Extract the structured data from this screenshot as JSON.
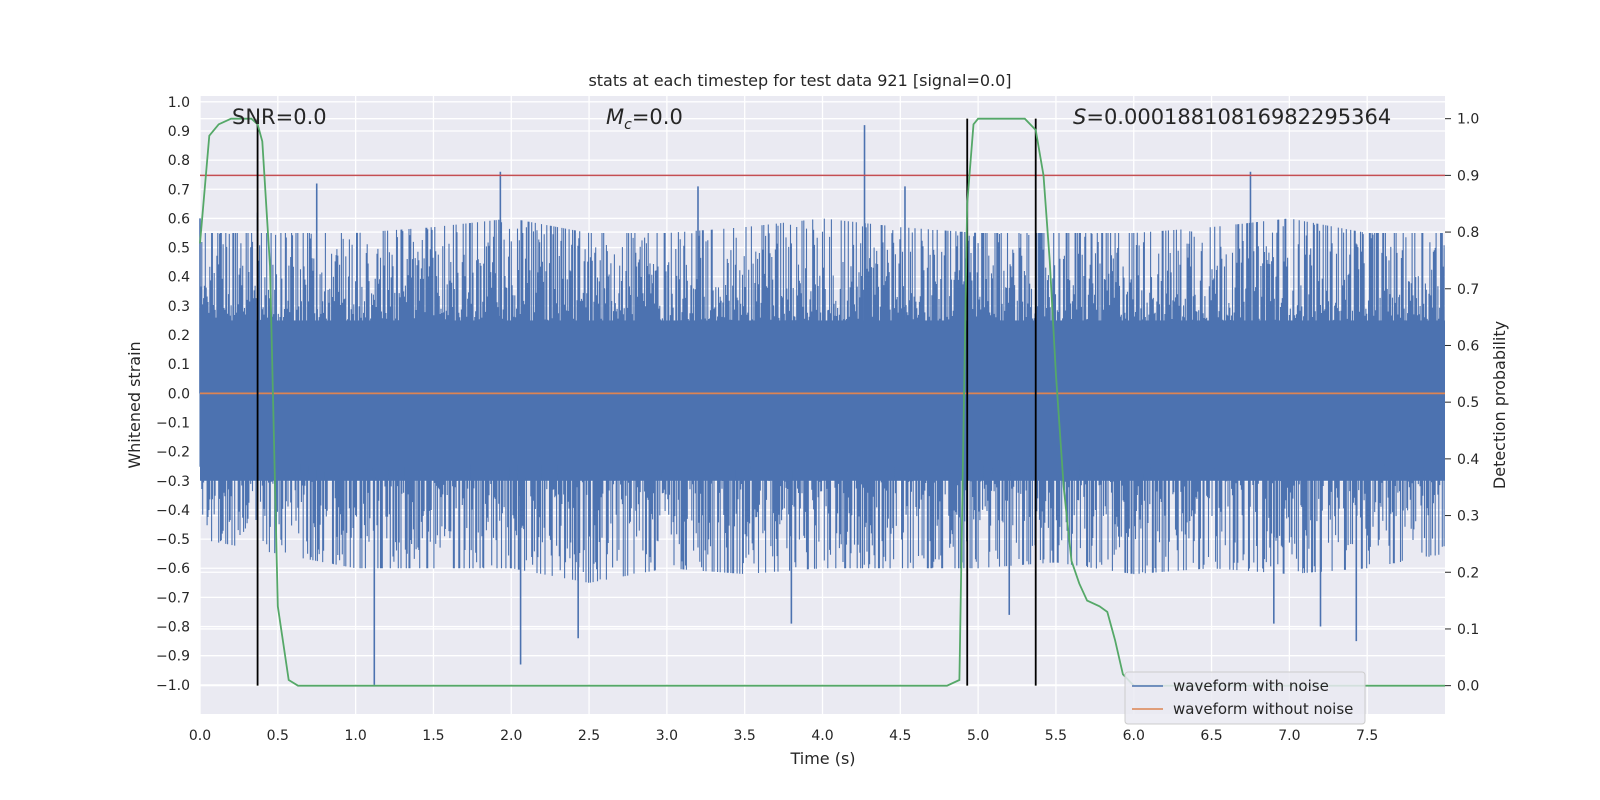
{
  "chart_data": {
    "type": "line",
    "title": "stats at each timestep for test data 921 [signal=0.0]",
    "xlabel": "Time (s)",
    "ylabel_left": "Whitened strain",
    "ylabel_right": "Detection probability",
    "xlim": [
      0.0,
      8.0
    ],
    "ylim_left": [
      -1.1,
      1.02
    ],
    "ylim_right": [
      -0.05,
      1.04
    ],
    "x_ticks": [
      "0.0",
      "0.5",
      "1.0",
      "1.5",
      "2.0",
      "2.5",
      "3.0",
      "3.5",
      "4.0",
      "4.5",
      "5.0",
      "5.5",
      "6.0",
      "6.5",
      "7.0",
      "7.5"
    ],
    "x_tick_values": [
      0.0,
      0.5,
      1.0,
      1.5,
      2.0,
      2.5,
      3.0,
      3.5,
      4.0,
      4.5,
      5.0,
      5.5,
      6.0,
      6.5,
      7.0,
      7.5
    ],
    "y_ticks_left": [
      "1.0",
      "0.9",
      "0.8",
      "0.7",
      "0.6",
      "0.5",
      "0.4",
      "0.3",
      "0.2",
      "0.1",
      "0.0",
      "−0.1",
      "−0.2",
      "−0.3",
      "−0.4",
      "−0.5",
      "−0.6",
      "−0.7",
      "−0.8",
      "−0.9",
      "−1.0"
    ],
    "y_tick_values_left": [
      1.0,
      0.9,
      0.8,
      0.7,
      0.6,
      0.5,
      0.4,
      0.3,
      0.2,
      0.1,
      0.0,
      -0.1,
      -0.2,
      -0.3,
      -0.4,
      -0.5,
      -0.6,
      -0.7,
      -0.8,
      -0.9,
      -1.0
    ],
    "y_ticks_right": [
      "1.0",
      "0.9",
      "0.8",
      "0.7",
      "0.6",
      "0.5",
      "0.4",
      "0.3",
      "0.2",
      "0.1",
      "0.0"
    ],
    "y_tick_values_right": [
      1.0,
      0.9,
      0.8,
      0.7,
      0.6,
      0.5,
      0.4,
      0.3,
      0.2,
      0.1,
      0.0
    ],
    "annotations": {
      "snr": "SNR=0.0",
      "mc_symbol": "M",
      "mc_subscript": "c",
      "mc_value": "=0.0",
      "s_symbol": "S",
      "s_value": "=0.00018810816982295364"
    },
    "threshold": {
      "value": 0.9,
      "axis": "right",
      "color": "#c44e52"
    },
    "noisy_waveform": {
      "name": "waveform with noise",
      "color": "#4c72b0",
      "envelope": {
        "x": [
          0.0,
          0.5,
          1.0,
          1.5,
          2.0,
          2.5,
          3.0,
          3.5,
          4.0,
          4.5,
          5.0,
          5.5,
          6.0,
          6.5,
          7.0,
          7.5,
          8.0
        ],
        "upper": [
          0.55,
          0.55,
          0.55,
          0.57,
          0.6,
          0.55,
          0.55,
          0.57,
          0.6,
          0.57,
          0.55,
          0.55,
          0.55,
          0.57,
          0.6,
          0.55,
          0.55
        ],
        "lower": [
          -0.5,
          -0.55,
          -0.6,
          -0.6,
          -0.6,
          -0.65,
          -0.6,
          -0.62,
          -0.6,
          -0.6,
          -0.6,
          -0.58,
          -0.62,
          -0.6,
          -0.62,
          -0.6,
          -0.55
        ]
      },
      "spikes": [
        {
          "x": 0.0,
          "y": 0.6
        },
        {
          "x": 0.37,
          "y": 0.62
        },
        {
          "x": 0.75,
          "y": 0.72
        },
        {
          "x": 1.12,
          "y": -1.0
        },
        {
          "x": 1.93,
          "y": 0.76
        },
        {
          "x": 2.06,
          "y": -0.93
        },
        {
          "x": 2.43,
          "y": -0.84
        },
        {
          "x": 3.2,
          "y": 0.71
        },
        {
          "x": 3.8,
          "y": -0.79
        },
        {
          "x": 4.27,
          "y": 0.92
        },
        {
          "x": 4.53,
          "y": 0.71
        },
        {
          "x": 5.2,
          "y": -0.76
        },
        {
          "x": 6.75,
          "y": 0.76
        },
        {
          "x": 6.9,
          "y": -0.79
        },
        {
          "x": 7.2,
          "y": -0.8
        },
        {
          "x": 7.43,
          "y": -0.85
        }
      ]
    },
    "clean_waveform": {
      "name": "waveform without noise",
      "color": "#dd8452",
      "value": 0.0
    },
    "detection_probability": {
      "color": "#55a868",
      "x": [
        0.0,
        0.06,
        0.12,
        0.2,
        0.28,
        0.33,
        0.37,
        0.4,
        0.45,
        0.5,
        0.57,
        0.63,
        1.0,
        2.0,
        3.0,
        4.0,
        4.3,
        4.5,
        4.7,
        4.8,
        4.88,
        4.93,
        4.97,
        5.0,
        5.1,
        5.2,
        5.3,
        5.37,
        5.42,
        5.46,
        5.5,
        5.55,
        5.6,
        5.65,
        5.7,
        5.78,
        5.83,
        5.88,
        5.93,
        6.0,
        6.5,
        7.0,
        7.5,
        8.0
      ],
      "y": [
        0.78,
        0.97,
        0.99,
        1.0,
        1.0,
        1.0,
        0.99,
        0.96,
        0.74,
        0.14,
        0.01,
        0.0,
        0.0,
        0.0,
        0.0,
        0.0,
        0.0,
        0.0,
        0.0,
        0.0,
        0.01,
        0.85,
        0.99,
        1.0,
        1.0,
        1.0,
        1.0,
        0.98,
        0.9,
        0.75,
        0.55,
        0.35,
        0.22,
        0.18,
        0.15,
        0.14,
        0.13,
        0.08,
        0.02,
        0.0,
        0.0,
        0.0,
        0.0,
        0.0
      ]
    },
    "vertical_markers": [
      0.37,
      4.93,
      5.37
    ],
    "legend": {
      "placement": "lower-right",
      "entries": [
        {
          "label": "waveform with noise",
          "color": "#4c72b0"
        },
        {
          "label": "waveform without noise",
          "color": "#dd8452"
        }
      ]
    }
  }
}
